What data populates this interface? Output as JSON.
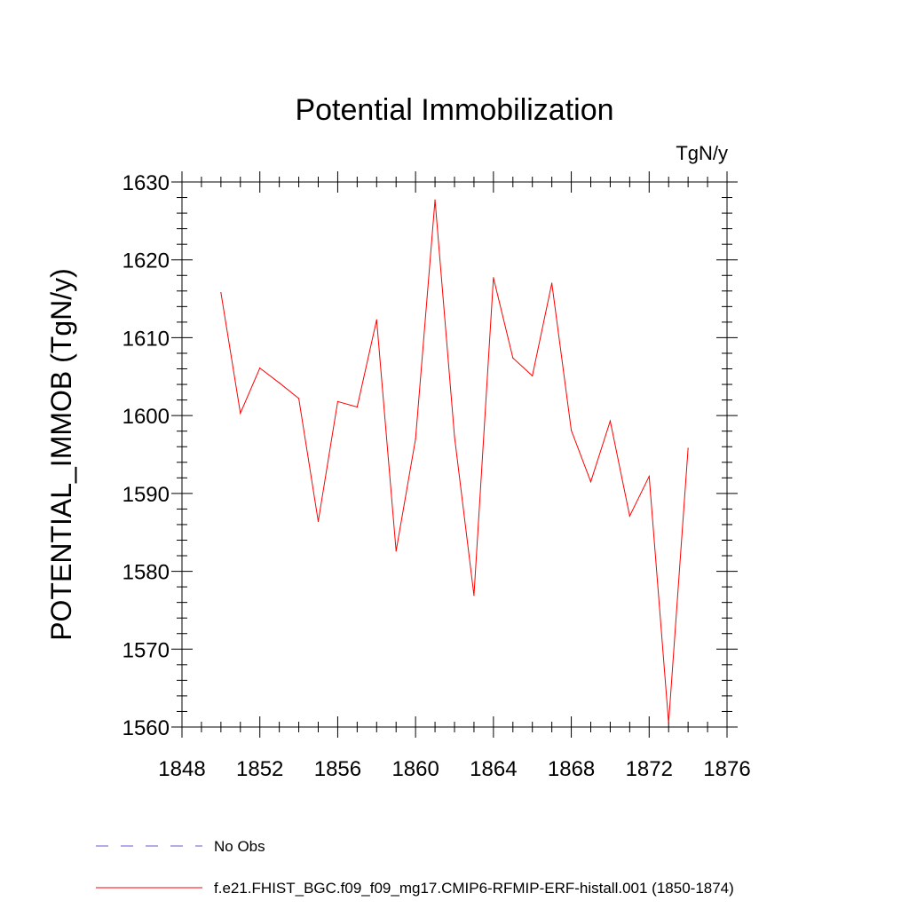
{
  "chart_data": {
    "type": "line",
    "title": "Potential Immobilization",
    "units_label": "TgN/y",
    "xlabel": "",
    "ylabel": "POTENTIAL_IMMOB  (TgN/y)",
    "xlim": [
      1848,
      1876
    ],
    "ylim": [
      1560,
      1630
    ],
    "x_ticks": [
      1848,
      1852,
      1856,
      1860,
      1864,
      1868,
      1872,
      1876
    ],
    "y_ticks": [
      1560,
      1570,
      1580,
      1590,
      1600,
      1610,
      1620,
      1630
    ],
    "x_tick_labels": [
      "1848",
      "1852",
      "1856",
      "1860",
      "1864",
      "1868",
      "1872",
      "1876"
    ],
    "y_tick_labels": [
      "1560",
      "1570",
      "1580",
      "1590",
      "1600",
      "1610",
      "1620",
      "1630"
    ],
    "grid": false,
    "series": [
      {
        "name": "f.e21.FHIST_BGC.f09_f09_mg17.CMIP6-RFMIP-ERF-histall.001 (1850-1874)",
        "color": "#ff0000",
        "style": "solid",
        "x": [
          1850,
          1851,
          1852,
          1853,
          1854,
          1855,
          1856,
          1857,
          1858,
          1859,
          1860,
          1861,
          1862,
          1863,
          1864,
          1865,
          1866,
          1867,
          1868,
          1869,
          1870,
          1871,
          1872,
          1873,
          1874
        ],
        "values": [
          1615.8,
          1600.3,
          1606.1,
          1604.2,
          1602.2,
          1586.4,
          1601.8,
          1601.1,
          1612.3,
          1582.6,
          1597.0,
          1627.7,
          1597.3,
          1576.9,
          1617.7,
          1607.4,
          1605.1,
          1617.0,
          1598.1,
          1591.5,
          1599.3,
          1587.1,
          1592.2,
          1560.5,
          1595.8
        ]
      }
    ],
    "legend": [
      {
        "label": "No Obs",
        "color": "#6a5acd",
        "style": "dashed"
      },
      {
        "label": "f.e21.FHIST_BGC.f09_f09_mg17.CMIP6-RFMIP-ERF-histall.001 (1850-1874)",
        "color": "#ff0000",
        "style": "solid"
      }
    ],
    "legend_position": "bottom-left"
  }
}
